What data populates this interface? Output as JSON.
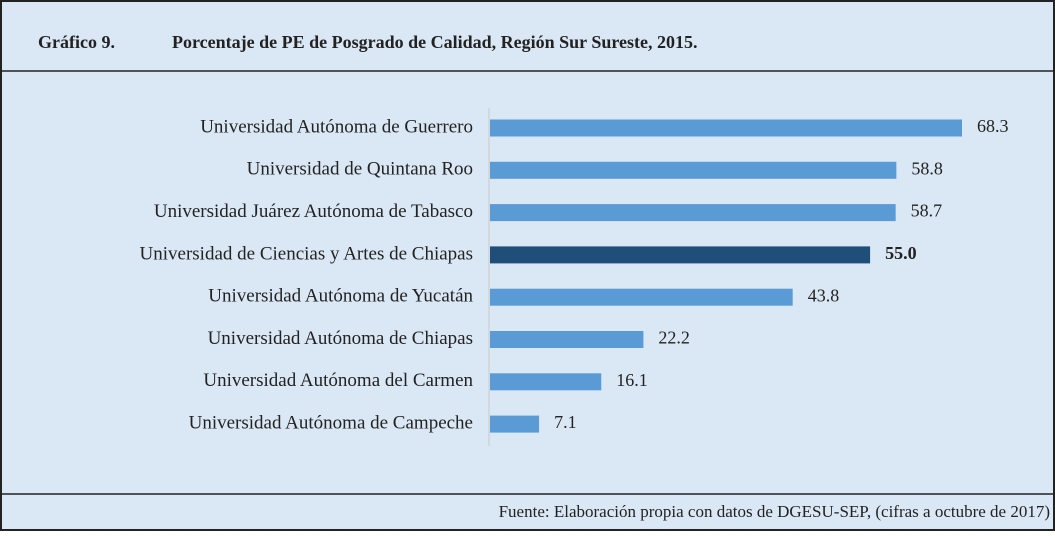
{
  "chart_data": {
    "type": "bar",
    "orientation": "horizontal",
    "figure_label": "Gráfico 9.",
    "title": "Porcentaje de PE de Posgrado de Calidad, Región Sur Sureste, 2015.",
    "source": "Fuente: Elaboración propia con datos de DGESU-SEP, (cifras a octubre de 2017)",
    "categories": [
      "Universidad Autónoma de Guerrero",
      "Universidad de Quintana Roo",
      "Universidad Juárez Autónoma de Tabasco",
      "Universidad de Ciencias y Artes de Chiapas",
      "Universidad Autónoma de Yucatán",
      "Universidad Autónoma de Chiapas",
      "Universidad Autónoma del Carmen",
      "Universidad Autónoma de Campeche"
    ],
    "values": [
      68.3,
      58.8,
      58.7,
      55.0,
      43.8,
      22.2,
      16.1,
      7.1
    ],
    "value_labels": [
      "68.3",
      "58.8",
      "58.7",
      "55.0",
      "43.8",
      "22.2",
      "16.1",
      "7.1"
    ],
    "color": "#5b9bd5",
    "colors": [
      "#5b9bd5",
      "#5b9bd5",
      "#5b9bd5",
      "#1f4e79",
      "#5b9bd5",
      "#5b9bd5",
      "#5b9bd5",
      "#5b9bd5"
    ],
    "grid": false
  }
}
